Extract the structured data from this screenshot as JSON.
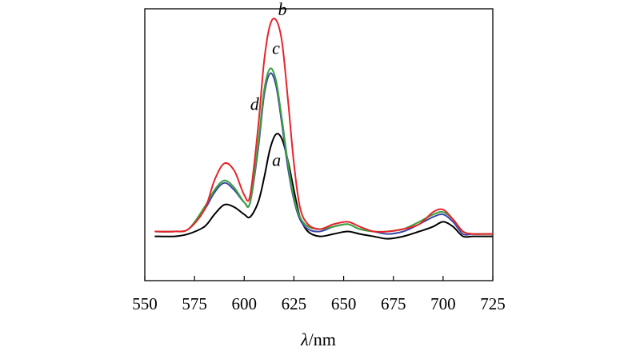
{
  "chart_data": {
    "type": "line",
    "title": "",
    "xlabel_symbol": "λ",
    "xlabel_unit": "/nm",
    "ylabel": "",
    "xlim": [
      550,
      725
    ],
    "ylim": [
      0,
      1
    ],
    "x_ticks": [
      550,
      575,
      600,
      625,
      650,
      675,
      700,
      725
    ],
    "grid": false,
    "legend": "none",
    "series": [
      {
        "name": "a",
        "color": "#000000",
        "label_at": [
          614,
          0.39
        ],
        "x": [
          555,
          565,
          572,
          580,
          585,
          590,
          595,
          600,
          603,
          607,
          610,
          613,
          616,
          619,
          622,
          625,
          628,
          632,
          638,
          645,
          652,
          658,
          665,
          672,
          680,
          688,
          695,
          700,
          705,
          710,
          715,
          720,
          725
        ],
        "y": [
          0.1,
          0.1,
          0.11,
          0.14,
          0.19,
          0.23,
          0.22,
          0.19,
          0.18,
          0.24,
          0.34,
          0.46,
          0.52,
          0.5,
          0.41,
          0.29,
          0.18,
          0.12,
          0.1,
          0.11,
          0.12,
          0.11,
          0.1,
          0.09,
          0.1,
          0.12,
          0.14,
          0.16,
          0.14,
          0.1,
          0.1,
          0.1,
          0.1
        ]
      },
      {
        "name": "b",
        "color": "#e8232a",
        "label_at": [
          617,
          1.01
        ],
        "x": [
          555,
          565,
          572,
          580,
          585,
          590,
          595,
          600,
          603,
          607,
          610,
          613,
          616,
          619,
          622,
          625,
          628,
          632,
          638,
          645,
          652,
          658,
          665,
          672,
          680,
          688,
          695,
          700,
          705,
          710,
          715,
          720,
          725
        ],
        "y": [
          0.12,
          0.12,
          0.13,
          0.21,
          0.33,
          0.4,
          0.37,
          0.27,
          0.27,
          0.55,
          0.82,
          0.97,
          0.99,
          0.9,
          0.66,
          0.4,
          0.22,
          0.15,
          0.13,
          0.15,
          0.16,
          0.14,
          0.12,
          0.12,
          0.13,
          0.15,
          0.2,
          0.21,
          0.17,
          0.12,
          0.11,
          0.11,
          0.11
        ]
      },
      {
        "name": "c",
        "color": "#3aa33a",
        "label_at": [
          614,
          0.85
        ],
        "x": [
          555,
          565,
          572,
          580,
          585,
          590,
          595,
          600,
          603,
          607,
          610,
          613,
          616,
          619,
          622,
          625,
          628,
          632,
          638,
          645,
          652,
          658,
          665,
          672,
          680,
          688,
          695,
          700,
          705,
          710,
          715,
          720,
          725
        ],
        "y": [
          0.12,
          0.12,
          0.13,
          0.22,
          0.29,
          0.33,
          0.3,
          0.24,
          0.24,
          0.48,
          0.7,
          0.79,
          0.74,
          0.58,
          0.4,
          0.26,
          0.18,
          0.14,
          0.13,
          0.14,
          0.15,
          0.13,
          0.12,
          0.12,
          0.13,
          0.16,
          0.19,
          0.2,
          0.17,
          0.12,
          0.11,
          0.11,
          0.11
        ]
      },
      {
        "name": "d",
        "color": "#3b47a8",
        "label_at": [
          603,
          0.62
        ],
        "x": [
          555,
          565,
          572,
          580,
          585,
          590,
          595,
          600,
          603,
          607,
          610,
          613,
          616,
          619,
          622,
          625,
          628,
          632,
          638,
          645,
          652,
          658,
          665,
          672,
          680,
          688,
          695,
          700,
          705,
          710,
          715,
          720,
          725
        ],
        "y": [
          0.12,
          0.12,
          0.13,
          0.21,
          0.28,
          0.32,
          0.29,
          0.24,
          0.24,
          0.46,
          0.68,
          0.77,
          0.72,
          0.56,
          0.38,
          0.25,
          0.17,
          0.13,
          0.12,
          0.14,
          0.15,
          0.13,
          0.12,
          0.11,
          0.12,
          0.15,
          0.18,
          0.19,
          0.16,
          0.11,
          0.11,
          0.11,
          0.11
        ]
      }
    ]
  }
}
